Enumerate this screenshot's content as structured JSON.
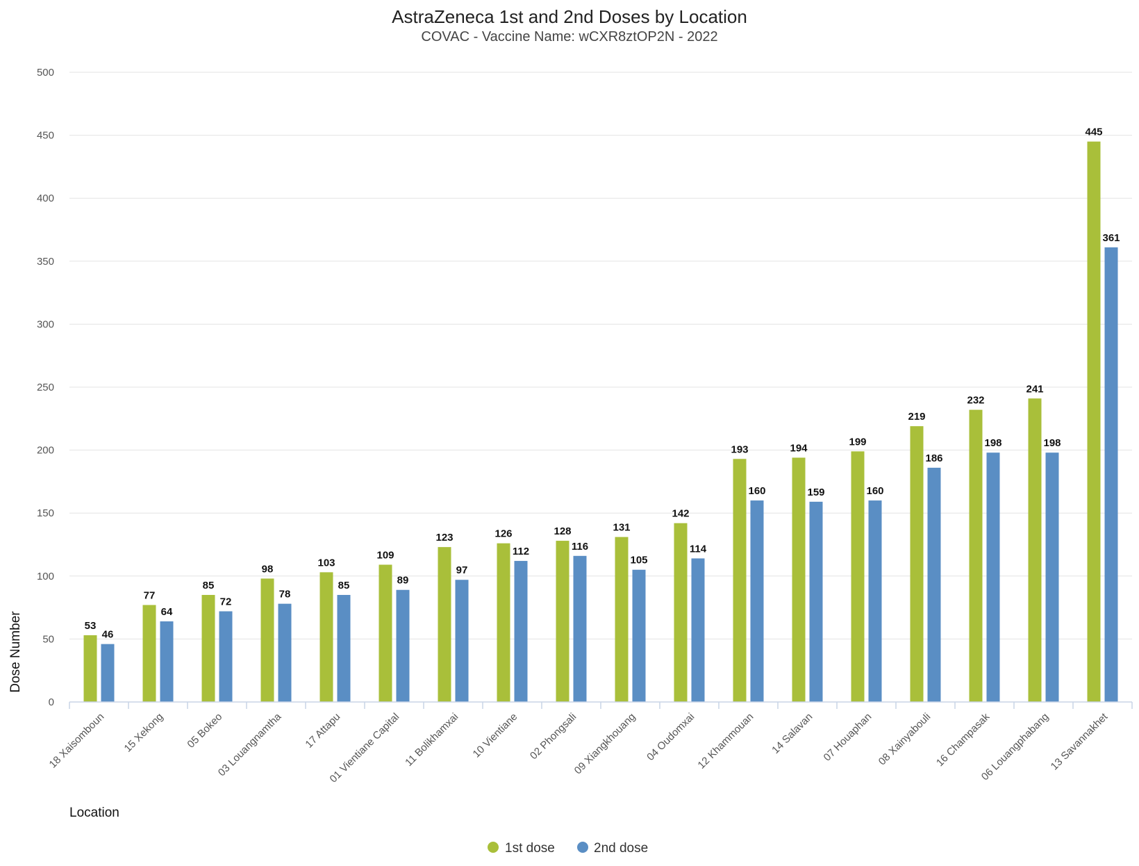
{
  "chart_data": {
    "type": "bar",
    "title": "AstraZeneca 1st and 2nd Doses by Location",
    "subtitle": "COVAC - Vaccine Name: wCXR8ztOP2N - 2022",
    "xlabel": "Location",
    "ylabel": "Dose Number",
    "ylim": [
      0,
      500
    ],
    "yticks": [
      0,
      50,
      100,
      150,
      200,
      250,
      300,
      350,
      400,
      450,
      500
    ],
    "grid": true,
    "legend_position": "bottom-center",
    "categories": [
      "18 Xaisomboun",
      "15 Xekong",
      "05 Bokeo",
      "03 Louangnamtha",
      "17 Attapu",
      "01 Vientiane Capital",
      "11 Bolikhamxai",
      "10 Vientiane",
      "02 Phongsali",
      "09 Xiangkhouang",
      "04 Oudomxai",
      "12 Khammouan",
      "14 Salavan",
      "07 Houaphan",
      "08 Xainyabouli",
      "16 Champasak",
      "06 Louangphabang",
      "13 Savannakhet"
    ],
    "series": [
      {
        "name": "1st dose",
        "color": "#a9bf3a",
        "values": [
          53,
          77,
          85,
          98,
          103,
          109,
          123,
          126,
          128,
          131,
          142,
          193,
          194,
          199,
          219,
          232,
          241,
          445
        ]
      },
      {
        "name": "2nd dose",
        "color": "#5a8ec4",
        "values": [
          46,
          64,
          72,
          78,
          85,
          89,
          97,
          112,
          116,
          105,
          114,
          160,
          159,
          160,
          186,
          198,
          198,
          361
        ]
      }
    ]
  }
}
